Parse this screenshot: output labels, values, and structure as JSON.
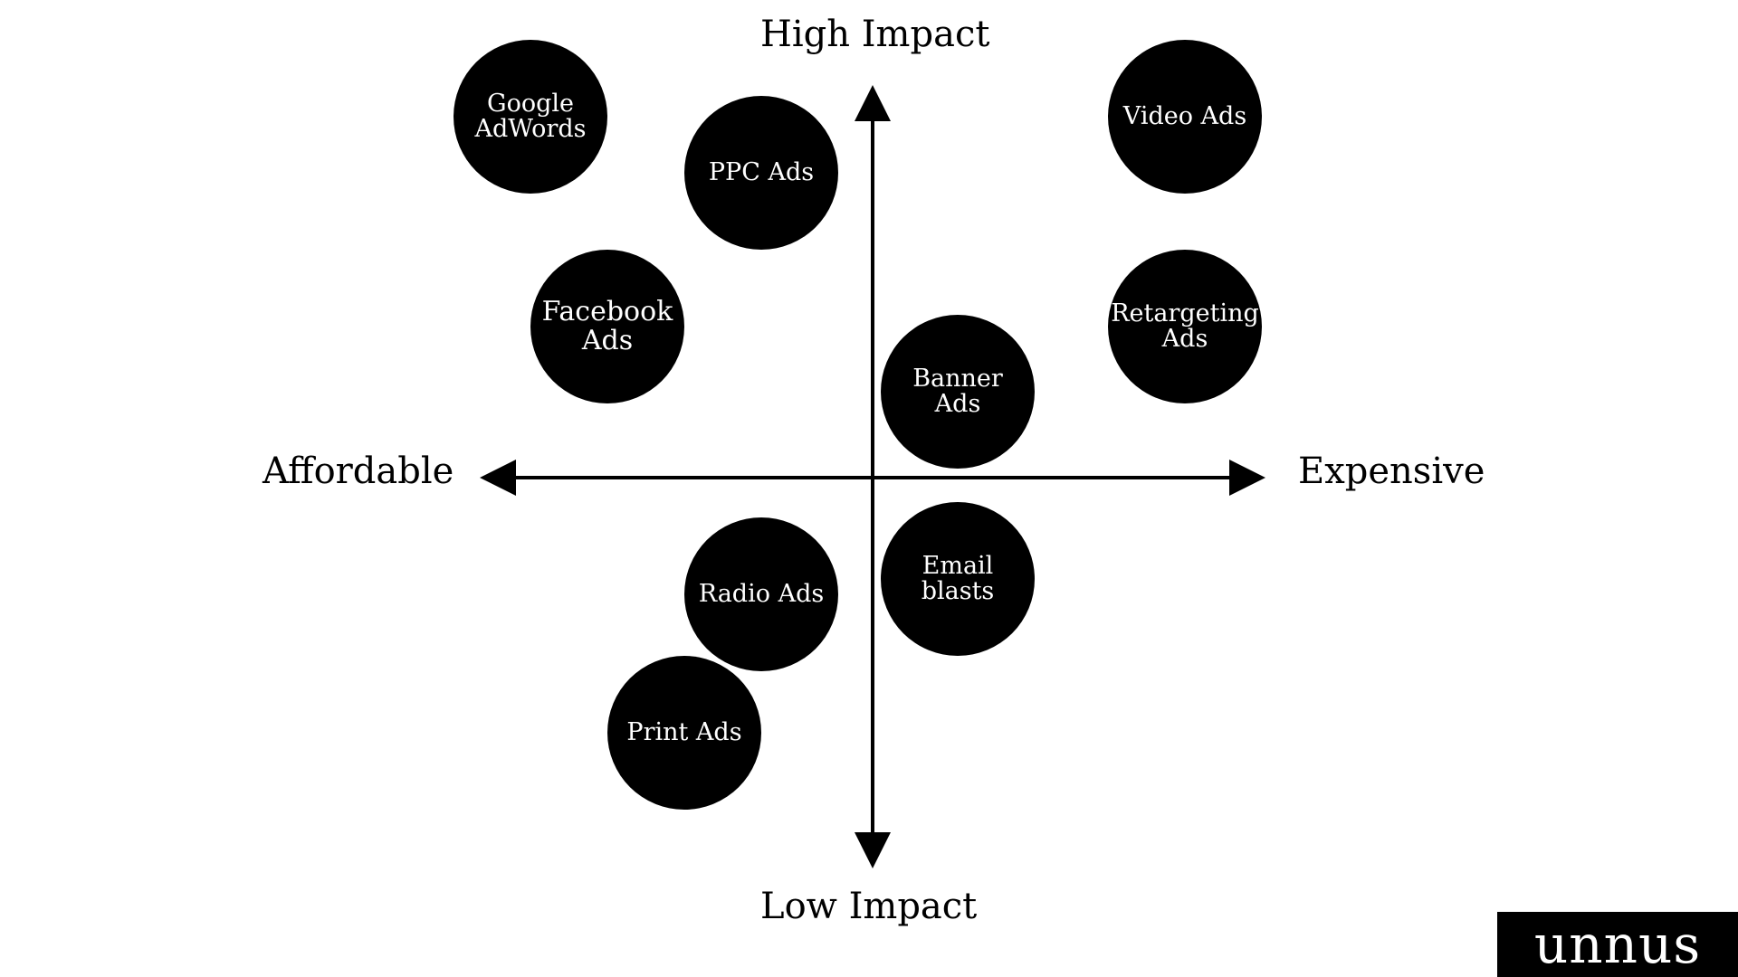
{
  "axes": {
    "top": "High Impact",
    "bottom": "Low Impact",
    "left": "Affordable",
    "right": "Expensive"
  },
  "bubbles": {
    "google": "Google\nAdWords",
    "ppc": "PPC Ads",
    "video": "Video Ads",
    "facebook": "Facebook\nAds",
    "retargeting": "Retargeting\nAds",
    "banner": "Banner\nAds",
    "radio": "Radio Ads",
    "email": "Email\nblasts",
    "print": "Print Ads"
  },
  "logo": {
    "text": "unnus"
  },
  "colors": {
    "bubble_fill": "#000000",
    "bubble_text": "#ffffff",
    "axis": "#000000",
    "background": "#ffffff"
  }
}
